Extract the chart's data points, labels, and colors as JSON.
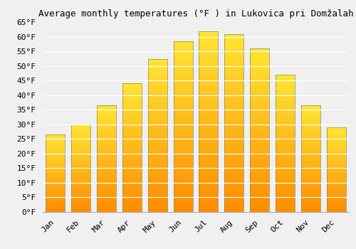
{
  "title": "Average monthly temperatures (°F ) in Lukovica pri Domžalah",
  "months": [
    "Jan",
    "Feb",
    "Mar",
    "Apr",
    "May",
    "Jun",
    "Jul",
    "Aug",
    "Sep",
    "Oct",
    "Nov",
    "Dec"
  ],
  "values": [
    26.6,
    30.0,
    36.5,
    44.0,
    52.5,
    58.5,
    62.0,
    61.0,
    56.0,
    47.0,
    36.5,
    29.0
  ],
  "bar_color": "#FFA500",
  "bar_edge_color": "#888844",
  "ylim": [
    0,
    65
  ],
  "yticks": [
    0,
    5,
    10,
    15,
    20,
    25,
    30,
    35,
    40,
    45,
    50,
    55,
    60,
    65
  ],
  "background_color": "#F0F0F0",
  "grid_color": "#FFFFFF",
  "title_fontsize": 9,
  "tick_fontsize": 8,
  "bar_width": 0.75
}
